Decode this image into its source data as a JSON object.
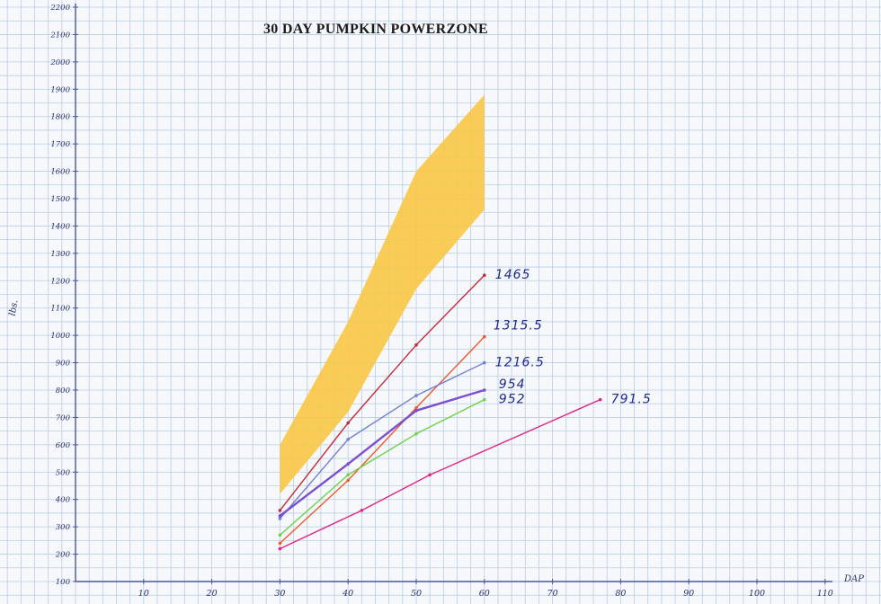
{
  "chart_data": {
    "type": "line",
    "title": "30 DAY PUMPKIN POWERZONE",
    "xlabel": "DAP",
    "ylabel": "lbs.",
    "xlim": [
      0,
      110
    ],
    "ylim": [
      100,
      2200
    ],
    "x_ticks": [
      10,
      20,
      30,
      40,
      50,
      60,
      70,
      80,
      90,
      100,
      110
    ],
    "y_ticks": [
      100,
      200,
      300,
      400,
      500,
      600,
      700,
      800,
      900,
      1000,
      1100,
      1200,
      1300,
      1400,
      1500,
      1600,
      1700,
      1800,
      1900,
      2000,
      2100,
      2200
    ],
    "grid": true,
    "powerzone": {
      "color": "#f8c84a",
      "upper": [
        [
          30,
          600
        ],
        [
          40,
          1050
        ],
        [
          50,
          1600
        ],
        [
          60,
          1880
        ]
      ],
      "lower": [
        [
          30,
          420
        ],
        [
          40,
          720
        ],
        [
          50,
          1170
        ],
        [
          60,
          1460
        ]
      ]
    },
    "series": [
      {
        "color": "#c62a3a",
        "end_label": "1465",
        "label_offset": [
          12,
          4
        ],
        "points": [
          [
            30,
            360
          ],
          [
            40,
            680
          ],
          [
            50,
            965
          ],
          [
            60,
            1220
          ]
        ]
      },
      {
        "color": "#ee5a2a",
        "end_label": "1315.5",
        "label_offset": [
          10,
          -8
        ],
        "points": [
          [
            30,
            240
          ],
          [
            40,
            470
          ],
          [
            50,
            735
          ],
          [
            60,
            995
          ]
        ]
      },
      {
        "color": "#7480d4",
        "end_label": "1216.5",
        "label_offset": [
          12,
          4
        ],
        "points": [
          [
            30,
            330
          ],
          [
            40,
            620
          ],
          [
            50,
            780
          ],
          [
            60,
            900
          ]
        ]
      },
      {
        "color": "#7b4fcf",
        "end_label": "954",
        "label_offset": [
          16,
          -2
        ],
        "points": [
          [
            30,
            340
          ],
          [
            40,
            530
          ],
          [
            50,
            725
          ],
          [
            60,
            800
          ]
        ]
      },
      {
        "color": "#6bd14b",
        "end_label": "952",
        "label_offset": [
          16,
          4
        ],
        "points": [
          [
            30,
            270
          ],
          [
            40,
            490
          ],
          [
            50,
            640
          ],
          [
            60,
            765
          ]
        ]
      },
      {
        "color": "#e0248a",
        "end_label": "791.5",
        "label_offset": [
          12,
          4
        ],
        "points": [
          [
            30,
            220
          ],
          [
            42,
            360
          ],
          [
            52,
            490
          ],
          [
            77,
            765
          ]
        ]
      }
    ]
  }
}
